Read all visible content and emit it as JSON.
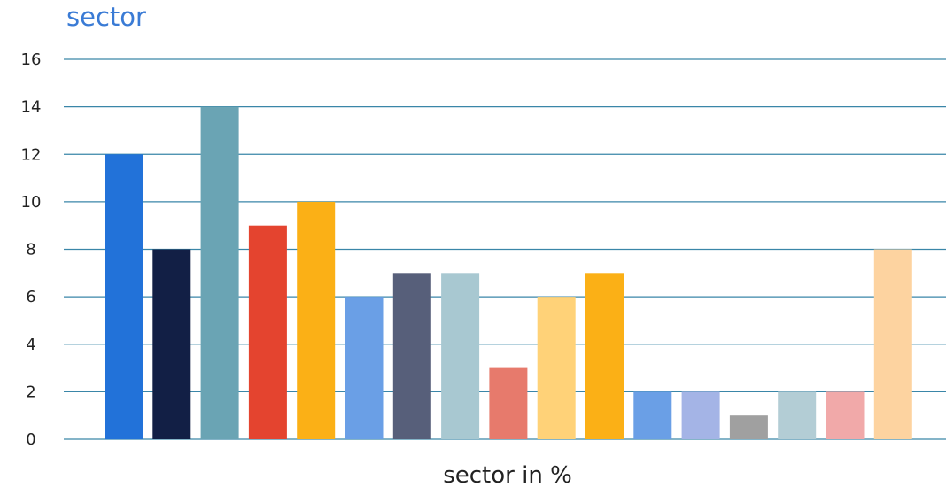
{
  "chart_data": {
    "type": "bar",
    "title": "sector",
    "xlabel": "sector in %",
    "ylabel": "",
    "ylim": [
      0,
      16
    ],
    "yticks": [
      0,
      2,
      4,
      6,
      8,
      10,
      12,
      14,
      16
    ],
    "grid": true,
    "legend": "none",
    "values": [
      12,
      8,
      14,
      9,
      10,
      6,
      7,
      7,
      3,
      6,
      7,
      2,
      2,
      1,
      2,
      2,
      8
    ],
    "colors": [
      "#2272d9",
      "#121f45",
      "#6aa4b4",
      "#e4442f",
      "#fbb016",
      "#6a9fe6",
      "#575f7a",
      "#a8c8d1",
      "#e77a6c",
      "#ffd278",
      "#fbb016",
      "#6a9fe6",
      "#a4b4e6",
      "#a0a0a0",
      "#b3cdd5",
      "#f1a9a9",
      "#fdd3a0"
    ],
    "gridline_color": "#3a86a8",
    "title_color": "#3a7bd5"
  }
}
